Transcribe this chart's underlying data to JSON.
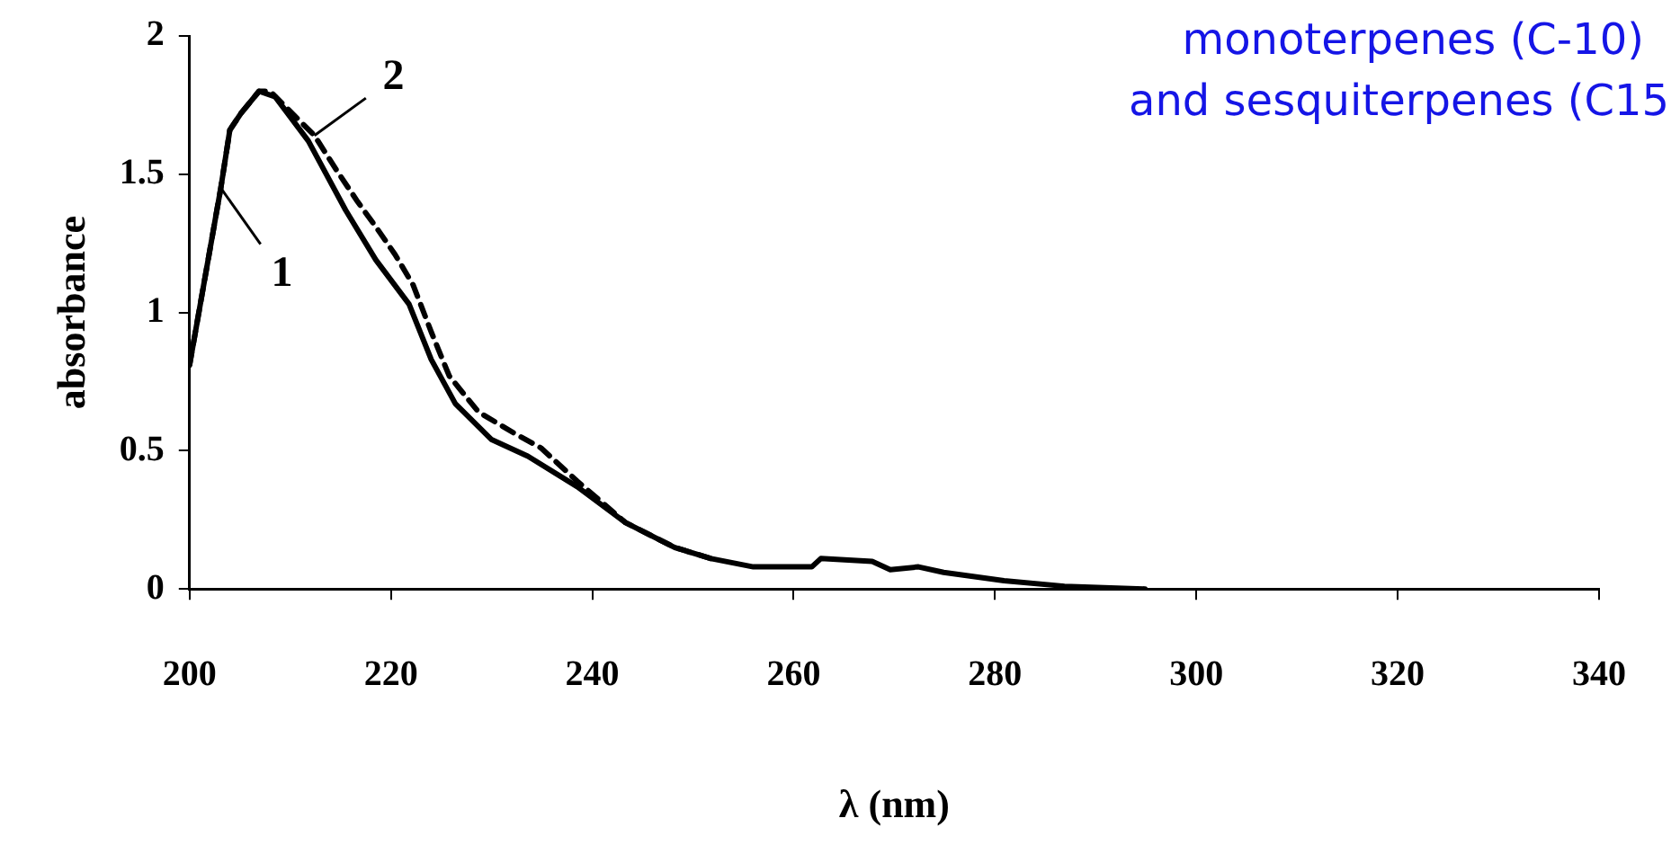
{
  "chart_data": {
    "type": "line",
    "xlabel": "λ (nm)",
    "ylabel": "absorbance",
    "xlim": [
      200,
      340
    ],
    "xticks": [
      200,
      220,
      240,
      260,
      280,
      300,
      320,
      340
    ],
    "ylim": [
      0,
      2
    ],
    "yticks": [
      0,
      0.5,
      1,
      1.5,
      2
    ],
    "grid": false,
    "legend": false,
    "marker": "none",
    "series": [
      {
        "color": "#000000",
        "line_style": "solid",
        "x": [
          200,
          203.1,
          204,
          205.1,
          206.9,
          208.5,
          211.8,
          215.5,
          218.5,
          221.8,
          224,
          226.4,
          230,
          233.6,
          238.5,
          243.3,
          248.2,
          251.8,
          256,
          261.8,
          262.7,
          267.8,
          269.6,
          272.4,
          274.9,
          280.9,
          286.9,
          294.9
        ],
        "values": [
          0.81,
          1.45,
          1.66,
          1.72,
          1.8,
          1.78,
          1.62,
          1.37,
          1.19,
          1.03,
          0.83,
          0.67,
          0.54,
          0.48,
          0.37,
          0.24,
          0.15,
          0.11,
          0.08,
          0.08,
          0.11,
          0.1,
          0.07,
          0.08,
          0.06,
          0.03,
          0.01,
          0
        ]
      },
      {
        "color": "#000000",
        "line_style": "dashed",
        "x": [
          200,
          203.1,
          204,
          205.1,
          206.9,
          208,
          212.4,
          214.5,
          216.7,
          218.5,
          220.4,
          222.2,
          224,
          225.8,
          228.7,
          232.4,
          234.9,
          238.5,
          243.3,
          248.2,
          251.8
        ],
        "values": [
          0.81,
          1.45,
          1.66,
          1.72,
          1.8,
          1.8,
          1.64,
          1.52,
          1.4,
          1.31,
          1.21,
          1.1,
          0.93,
          0.77,
          0.64,
          0.56,
          0.51,
          0.39,
          0.24,
          0.15,
          0.11
        ]
      }
    ],
    "annotations": [
      {
        "text": "1",
        "x": 203.1,
        "y": 1.45
      },
      {
        "text": "2",
        "x": 212.4,
        "y": 1.64
      },
      "monoterpenes (C-10)",
      "and sesquiterpenes (C15"
    ]
  }
}
